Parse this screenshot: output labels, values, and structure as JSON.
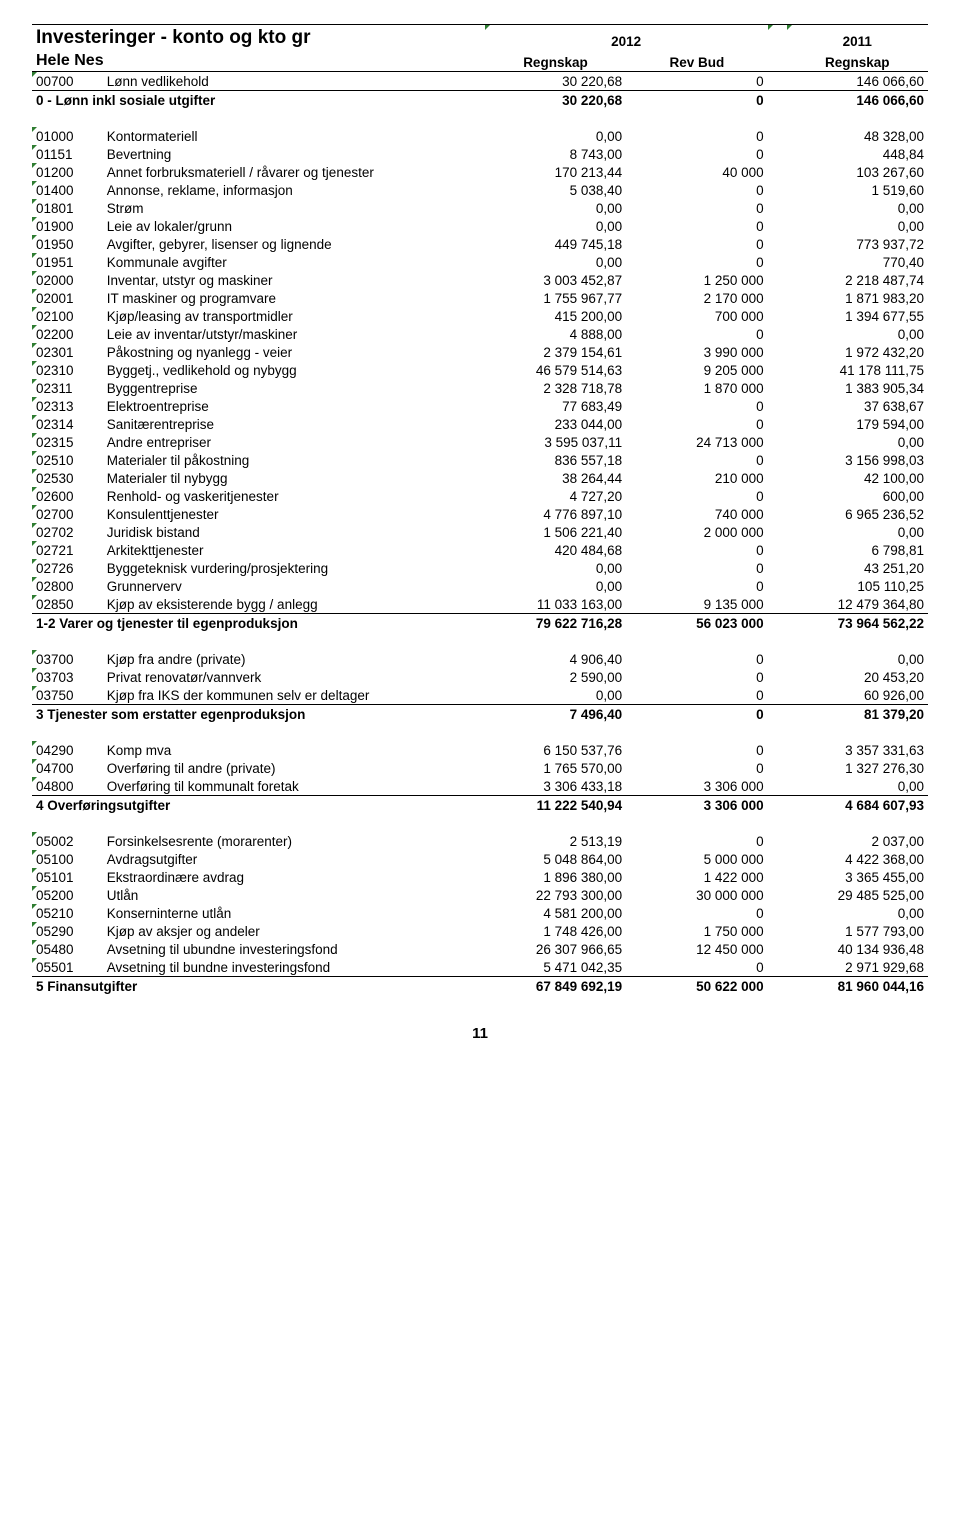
{
  "header": {
    "title": "Investeringer - konto og kto gr",
    "subtitle": "Hele Nes",
    "year1": "2012",
    "year2": "2011",
    "col1": "Regnskap",
    "col2": "Rev Bud",
    "col3": "Regnskap"
  },
  "page_number": "11",
  "rows": [
    {
      "t": "d",
      "code": "00700",
      "desc": "Lønn vedlikehold",
      "c1": "30 220,68",
      "c2": "0",
      "c3": "146 066,60"
    },
    {
      "t": "s",
      "desc": "0 - Lønn inkl sosiale utgifter",
      "c1": "30 220,68",
      "c2": "0",
      "c3": "146 066,60"
    },
    {
      "t": "sp"
    },
    {
      "t": "d",
      "code": "01000",
      "desc": "Kontormateriell",
      "c1": "0,00",
      "c2": "0",
      "c3": "48 328,00"
    },
    {
      "t": "d",
      "code": "01151",
      "desc": "Bevertning",
      "c1": "8 743,00",
      "c2": "0",
      "c3": "448,84"
    },
    {
      "t": "d",
      "code": "01200",
      "desc": "Annet forbruksmateriell / råvarer og tjenester",
      "c1": "170 213,44",
      "c2": "40 000",
      "c3": "103 267,60"
    },
    {
      "t": "d",
      "code": "01400",
      "desc": "Annonse, reklame, informasjon",
      "c1": "5 038,40",
      "c2": "0",
      "c3": "1 519,60"
    },
    {
      "t": "d",
      "code": "01801",
      "desc": "Strøm",
      "c1": "0,00",
      "c2": "0",
      "c3": "0,00"
    },
    {
      "t": "d",
      "code": "01900",
      "desc": "Leie av lokaler/grunn",
      "c1": "0,00",
      "c2": "0",
      "c3": "0,00"
    },
    {
      "t": "d",
      "code": "01950",
      "desc": "Avgifter, gebyrer, lisenser og lignende",
      "c1": "449 745,18",
      "c2": "0",
      "c3": "773 937,72"
    },
    {
      "t": "d",
      "code": "01951",
      "desc": "Kommunale avgifter",
      "c1": "0,00",
      "c2": "0",
      "c3": "770,40"
    },
    {
      "t": "d",
      "code": "02000",
      "desc": "Inventar, utstyr og maskiner",
      "c1": "3 003 452,87",
      "c2": "1 250 000",
      "c3": "2 218 487,74"
    },
    {
      "t": "d",
      "code": "02001",
      "desc": "IT maskiner og programvare",
      "c1": "1 755 967,77",
      "c2": "2 170 000",
      "c3": "1 871 983,20"
    },
    {
      "t": "d",
      "code": "02100",
      "desc": "Kjøp/leasing av transportmidler",
      "c1": "415 200,00",
      "c2": "700 000",
      "c3": "1 394 677,55"
    },
    {
      "t": "d",
      "code": "02200",
      "desc": "Leie av inventar/utstyr/maskiner",
      "c1": "4 888,00",
      "c2": "0",
      "c3": "0,00"
    },
    {
      "t": "d",
      "code": "02301",
      "desc": "Påkostning og nyanlegg - veier",
      "c1": "2 379 154,61",
      "c2": "3 990 000",
      "c3": "1 972 432,20"
    },
    {
      "t": "d",
      "code": "02310",
      "desc": "Byggetj., vedlikehold og nybygg",
      "c1": "46 579 514,63",
      "c2": "9 205 000",
      "c3": "41 178 111,75"
    },
    {
      "t": "d",
      "code": "02311",
      "desc": "Byggentreprise",
      "c1": "2 328 718,78",
      "c2": "1 870 000",
      "c3": "1 383 905,34"
    },
    {
      "t": "d",
      "code": "02313",
      "desc": "Elektroentreprise",
      "c1": "77 683,49",
      "c2": "0",
      "c3": "37 638,67"
    },
    {
      "t": "d",
      "code": "02314",
      "desc": "Sanitærentreprise",
      "c1": "233 044,00",
      "c2": "0",
      "c3": "179 594,00"
    },
    {
      "t": "d",
      "code": "02315",
      "desc": "Andre entrepriser",
      "c1": "3 595 037,11",
      "c2": "24 713 000",
      "c3": "0,00"
    },
    {
      "t": "d",
      "code": "02510",
      "desc": "Materialer til påkostning",
      "c1": "836 557,18",
      "c2": "0",
      "c3": "3 156 998,03"
    },
    {
      "t": "d",
      "code": "02530",
      "desc": "Materialer til nybygg",
      "c1": "38 264,44",
      "c2": "210 000",
      "c3": "42 100,00"
    },
    {
      "t": "d",
      "code": "02600",
      "desc": "Renhold- og vaskeritjenester",
      "c1": "4 727,20",
      "c2": "0",
      "c3": "600,00"
    },
    {
      "t": "d",
      "code": "02700",
      "desc": "Konsulenttjenester",
      "c1": "4 776 897,10",
      "c2": "740 000",
      "c3": "6 965 236,52"
    },
    {
      "t": "d",
      "code": "02702",
      "desc": "Juridisk bistand",
      "c1": "1 506 221,40",
      "c2": "2 000 000",
      "c3": "0,00"
    },
    {
      "t": "d",
      "code": "02721",
      "desc": "Arkitekttjenester",
      "c1": "420 484,68",
      "c2": "0",
      "c3": "6 798,81"
    },
    {
      "t": "d",
      "code": "02726",
      "desc": "Byggeteknisk vurdering/prosjektering",
      "c1": "0,00",
      "c2": "0",
      "c3": "43 251,20"
    },
    {
      "t": "d",
      "code": "02800",
      "desc": "Grunnerverv",
      "c1": "0,00",
      "c2": "0",
      "c3": "105 110,25"
    },
    {
      "t": "d",
      "code": "02850",
      "desc": "Kjøp av eksisterende bygg / anlegg",
      "c1": "11 033 163,00",
      "c2": "9 135 000",
      "c3": "12 479 364,80"
    },
    {
      "t": "s",
      "desc": "1-2 Varer og tjenester til egenproduksjon",
      "c1": "79 622 716,28",
      "c2": "56 023 000",
      "c3": "73 964 562,22"
    },
    {
      "t": "sp"
    },
    {
      "t": "d",
      "code": "03700",
      "desc": "Kjøp fra andre (private)",
      "c1": "4 906,40",
      "c2": "0",
      "c3": "0,00"
    },
    {
      "t": "d",
      "code": "03703",
      "desc": "Privat renovatør/vannverk",
      "c1": "2 590,00",
      "c2": "0",
      "c3": "20 453,20"
    },
    {
      "t": "d",
      "code": "03750",
      "desc": "Kjøp fra IKS der kommunen selv er deltager",
      "c1": "0,00",
      "c2": "0",
      "c3": "60 926,00"
    },
    {
      "t": "s",
      "desc": "3 Tjenester som erstatter egenproduksjon",
      "c1": "7 496,40",
      "c2": "0",
      "c3": "81 379,20"
    },
    {
      "t": "sp"
    },
    {
      "t": "d",
      "code": "04290",
      "desc": "Komp mva",
      "c1": "6 150 537,76",
      "c2": "0",
      "c3": "3 357 331,63"
    },
    {
      "t": "d",
      "code": "04700",
      "desc": "Overføring til andre (private)",
      "c1": "1 765 570,00",
      "c2": "0",
      "c3": "1 327 276,30"
    },
    {
      "t": "d",
      "code": "04800",
      "desc": "Overføring til kommunalt foretak",
      "c1": "3 306 433,18",
      "c2": "3 306 000",
      "c3": "0,00"
    },
    {
      "t": "s",
      "desc": "4 Overføringsutgifter",
      "c1": "11 222 540,94",
      "c2": "3 306 000",
      "c3": "4 684 607,93"
    },
    {
      "t": "sp"
    },
    {
      "t": "d",
      "code": "05002",
      "desc": "Forsinkelsesrente (morarenter)",
      "c1": "2 513,19",
      "c2": "0",
      "c3": "2 037,00"
    },
    {
      "t": "d",
      "code": "05100",
      "desc": "Avdragsutgifter",
      "c1": "5 048 864,00",
      "c2": "5 000 000",
      "c3": "4 422 368,00"
    },
    {
      "t": "d",
      "code": "05101",
      "desc": "Ekstraordinære avdrag",
      "c1": "1 896 380,00",
      "c2": "1 422 000",
      "c3": "3 365 455,00"
    },
    {
      "t": "d",
      "code": "05200",
      "desc": "Utlån",
      "c1": "22 793 300,00",
      "c2": "30 000 000",
      "c3": "29 485 525,00"
    },
    {
      "t": "d",
      "code": "05210",
      "desc": "Konserninterne utlån",
      "c1": "4 581 200,00",
      "c2": "0",
      "c3": "0,00"
    },
    {
      "t": "d",
      "code": "05290",
      "desc": "Kjøp av aksjer og andeler",
      "c1": "1 748 426,00",
      "c2": "1 750 000",
      "c3": "1 577 793,00"
    },
    {
      "t": "d",
      "code": "05480",
      "desc": "Avsetning til ubundne investeringsfond",
      "c1": "26 307 966,65",
      "c2": "12 450 000",
      "c3": "40 134 936,48"
    },
    {
      "t": "d",
      "code": "05501",
      "desc": "Avsetning til bundne investeringsfond",
      "c1": "5 471 042,35",
      "c2": "0",
      "c3": "2 971 929,68"
    },
    {
      "t": "s",
      "desc": "5 Finansutgifter",
      "c1": "67 849 692,19",
      "c2": "50 622 000",
      "c3": "81 960 044,16"
    }
  ]
}
